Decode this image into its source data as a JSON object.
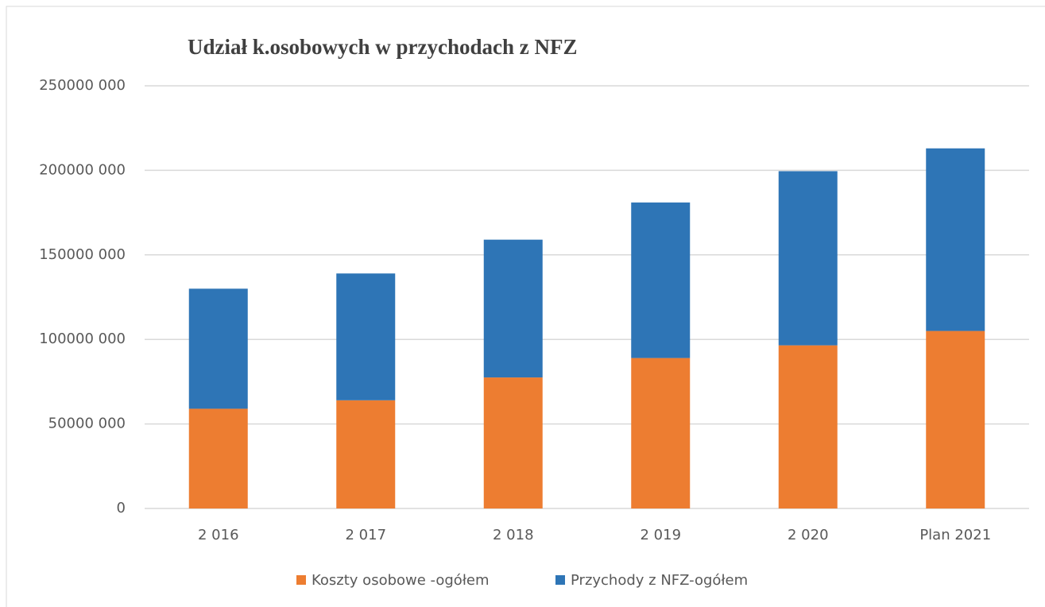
{
  "chart_data": {
    "type": "stacked_bar",
    "title": "Udział k.osobowych w przychodach z NFZ",
    "categories": [
      "2 016",
      "2 017",
      "2 018",
      "2 019",
      "2 020",
      "Plan 2021"
    ],
    "series": [
      {
        "name": "Koszty osobowe -ogółem",
        "color": "#ed7d31",
        "values": [
          59000000,
          64000000,
          77500000,
          89000000,
          96500000,
          105000000
        ]
      },
      {
        "name": "Przychody z NFZ-ogółem",
        "color": "#2e75b6",
        "values": [
          71000000,
          75000000,
          81500000,
          92000000,
          103000000,
          108000000
        ]
      }
    ],
    "ylim": [
      0,
      250000000
    ],
    "yticks": [
      0,
      {
        "value": 50000000,
        "label": "50000 000"
      },
      {
        "value": 100000000,
        "label": "100000 000"
      },
      {
        "value": 150000000,
        "label": "150000 000"
      },
      {
        "value": 200000000,
        "label": "200000 000"
      },
      {
        "value": 250000000,
        "label": "250000 000"
      }
    ],
    "grid": true,
    "legend": "bottom"
  }
}
